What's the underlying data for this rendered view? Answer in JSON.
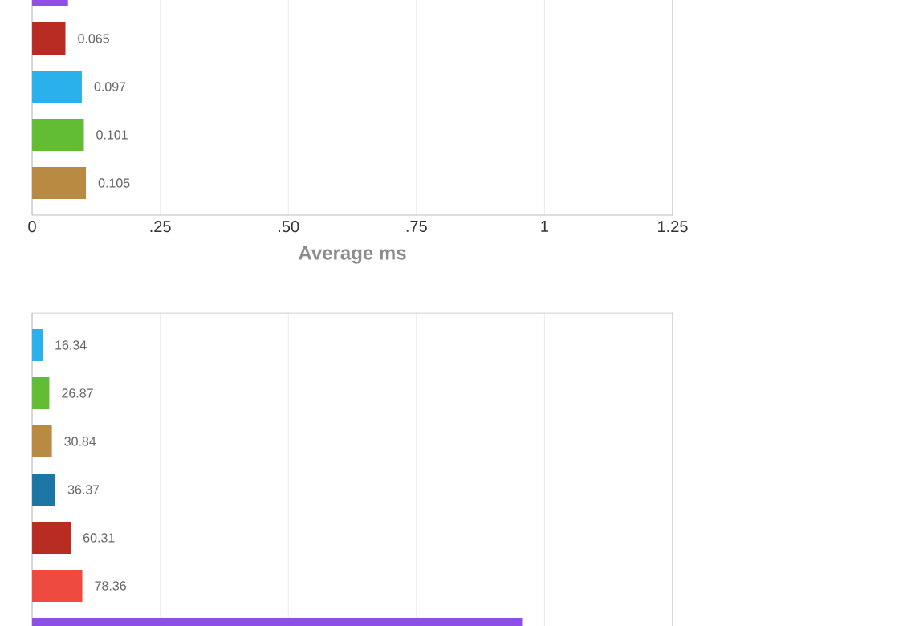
{
  "chart_data": [
    {
      "type": "bar",
      "orientation": "horizontal",
      "xlabel": "Average ms",
      "categories": [
        null,
        null,
        null,
        null,
        null
      ],
      "values": [
        0.07,
        0.065,
        0.097,
        0.101,
        0.105
      ],
      "colors": [
        "#8e4fe6",
        "#b82c24",
        "#2ab0ea",
        "#62bd35",
        "#b88a42"
      ],
      "value_labels": [
        null,
        "0.065",
        "0.097",
        "0.101",
        "0.105"
      ],
      "xlim": [
        0,
        1.25
      ],
      "xticks": [
        0,
        {
          "value": 0.25,
          "label": ".25"
        },
        {
          "value": 0.5,
          "label": ".50"
        },
        {
          "value": 0.75,
          "label": ".75"
        },
        1,
        1.25
      ],
      "grid": "x"
    },
    {
      "type": "bar",
      "orientation": "horizontal",
      "categories": [
        null,
        null,
        null,
        null,
        null,
        null,
        null
      ],
      "values": [
        16.34,
        26.87,
        30.84,
        36.37,
        60.31,
        78.36,
        765
      ],
      "colors": [
        "#2ab0ea",
        "#62bd35",
        "#b88a42",
        "#1d77a5",
        "#b82c24",
        "#ef4a40",
        "#8e4fe6"
      ],
      "value_labels": [
        "16.34",
        "26.87",
        "30.84",
        "36.37",
        "60.31",
        "78.36",
        null
      ],
      "xlim": [
        0,
        1000
      ],
      "xticks": [
        {
          "value": 0,
          "label": null
        },
        {
          "value": 200,
          "label": null
        },
        {
          "value": 400,
          "label": null
        },
        {
          "value": 600,
          "label": null
        },
        {
          "value": 800,
          "label": null
        },
        {
          "value": 1000,
          "label": null
        }
      ],
      "grid": "x"
    }
  ]
}
